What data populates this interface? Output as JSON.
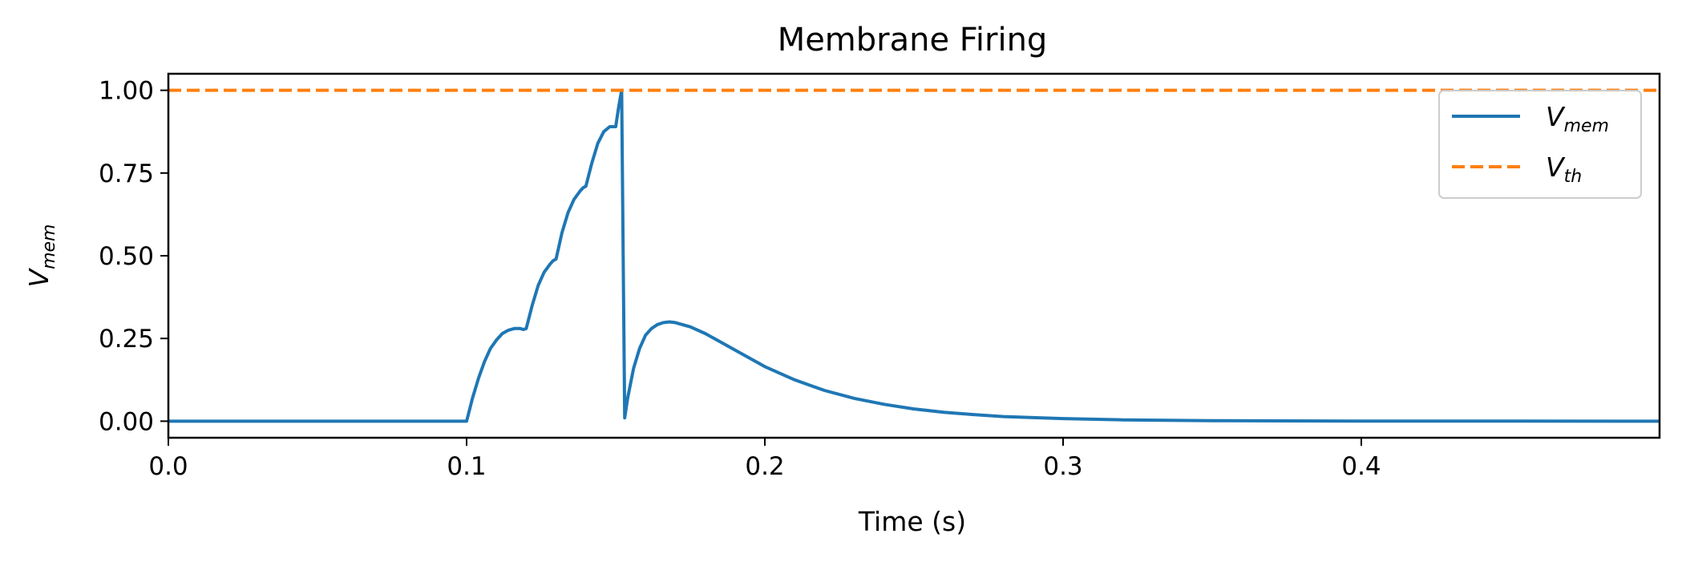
{
  "chart_data": {
    "type": "line",
    "title": "Membrane Firing",
    "xlabel": "Time (s)",
    "ylabel": {
      "main": "V",
      "sub": "mem"
    },
    "xlim": [
      0.0,
      0.5
    ],
    "ylim": [
      -0.05,
      1.05
    ],
    "xticks": [
      0.0,
      0.1,
      0.2,
      0.3,
      0.4
    ],
    "xtick_labels": [
      "0.0",
      "0.1",
      "0.2",
      "0.3",
      "0.4"
    ],
    "yticks": [
      0.0,
      0.25,
      0.5,
      0.75,
      1.0
    ],
    "ytick_labels": [
      "0.00",
      "0.25",
      "0.50",
      "0.75",
      "1.00"
    ],
    "grid": false,
    "legend_position": "top-right",
    "series": [
      {
        "name": {
          "main": "V",
          "sub": "mem"
        },
        "color": "#1f77b4",
        "style": "solid",
        "x": [
          0.0,
          0.099,
          0.1,
          0.102,
          0.104,
          0.106,
          0.108,
          0.11,
          0.112,
          0.114,
          0.116,
          0.118,
          0.119,
          0.12,
          0.122,
          0.124,
          0.126,
          0.128,
          0.129,
          0.13,
          0.132,
          0.134,
          0.136,
          0.138,
          0.139,
          0.14,
          0.142,
          0.144,
          0.146,
          0.148,
          0.149,
          0.15,
          0.151,
          0.152,
          0.1525,
          0.153,
          0.154,
          0.156,
          0.158,
          0.16,
          0.162,
          0.164,
          0.166,
          0.168,
          0.17,
          0.175,
          0.18,
          0.185,
          0.19,
          0.2,
          0.21,
          0.22,
          0.23,
          0.24,
          0.25,
          0.26,
          0.27,
          0.28,
          0.3,
          0.32,
          0.35,
          0.4,
          0.45,
          0.5
        ],
        "y": [
          0.0,
          0.0,
          0.0,
          0.07,
          0.13,
          0.18,
          0.22,
          0.245,
          0.265,
          0.275,
          0.28,
          0.28,
          0.277,
          0.28,
          0.35,
          0.41,
          0.45,
          0.475,
          0.485,
          0.49,
          0.57,
          0.63,
          0.67,
          0.695,
          0.705,
          0.71,
          0.78,
          0.84,
          0.875,
          0.89,
          0.89,
          0.89,
          0.95,
          1.0,
          0.5,
          0.01,
          0.07,
          0.16,
          0.22,
          0.26,
          0.28,
          0.292,
          0.298,
          0.3,
          0.298,
          0.285,
          0.265,
          0.24,
          0.215,
          0.165,
          0.125,
          0.093,
          0.069,
          0.051,
          0.037,
          0.027,
          0.02,
          0.014,
          0.008,
          0.004,
          0.0015,
          0.0005,
          0.0001,
          0.0
        ]
      },
      {
        "name": {
          "main": "V",
          "sub": "th"
        },
        "color": "#ff7f0e",
        "style": "dashed",
        "x": [
          0.0,
          0.5
        ],
        "y": [
          1.0,
          1.0
        ]
      }
    ]
  }
}
